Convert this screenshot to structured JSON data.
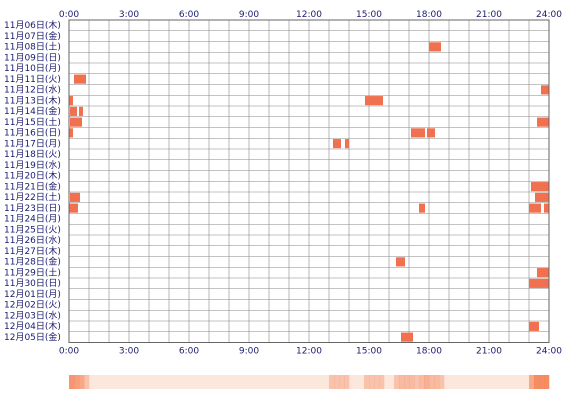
{
  "chart_data": {
    "type": "heatmap",
    "title": "",
    "xlabel": "",
    "ylabel": "",
    "xlim": [
      0,
      24
    ],
    "x_ticks": [
      "0:00",
      "3:00",
      "6:00",
      "9:00",
      "12:00",
      "15:00",
      "18:00",
      "21:00",
      "24:00"
    ],
    "grid": true,
    "rows": [
      {
        "label": "11月06日(木)",
        "spans": []
      },
      {
        "label": "11月07日(金)",
        "spans": []
      },
      {
        "label": "11月08日(土)",
        "spans": [
          [
            18.0,
            18.6
          ]
        ]
      },
      {
        "label": "11月09日(日)",
        "spans": []
      },
      {
        "label": "11月10日(月)",
        "spans": []
      },
      {
        "label": "11月11日(火)",
        "spans": [
          [
            0.25,
            0.85
          ]
        ]
      },
      {
        "label": "11月12日(水)",
        "spans": [
          [
            23.6,
            24.0
          ]
        ]
      },
      {
        "label": "11月13日(木)",
        "spans": [
          [
            0.0,
            0.2
          ],
          [
            14.8,
            15.7
          ]
        ]
      },
      {
        "label": "11月14日(金)",
        "spans": [
          [
            0.05,
            0.4
          ],
          [
            0.5,
            0.7
          ]
        ]
      },
      {
        "label": "11月15日(土)",
        "spans": [
          [
            0.05,
            0.65
          ],
          [
            23.4,
            24.0
          ]
        ]
      },
      {
        "label": "11月16日(日)",
        "spans": [
          [
            0.0,
            0.2
          ],
          [
            17.1,
            17.8
          ],
          [
            17.9,
            18.3
          ]
        ]
      },
      {
        "label": "11月17日(月)",
        "spans": [
          [
            13.2,
            13.6
          ],
          [
            13.8,
            14.0
          ]
        ]
      },
      {
        "label": "11月18日(火)",
        "spans": []
      },
      {
        "label": "11月19日(水)",
        "spans": []
      },
      {
        "label": "11月20日(木)",
        "spans": []
      },
      {
        "label": "11月21日(金)",
        "spans": [
          [
            23.1,
            24.0
          ]
        ]
      },
      {
        "label": "11月22日(土)",
        "spans": [
          [
            0.05,
            0.55
          ],
          [
            23.3,
            24.0
          ]
        ]
      },
      {
        "label": "11月23日(日)",
        "spans": [
          [
            0.0,
            0.45
          ],
          [
            17.5,
            17.8
          ],
          [
            23.0,
            23.6
          ],
          [
            23.75,
            24.0
          ]
        ]
      },
      {
        "label": "11月24日(月)",
        "spans": []
      },
      {
        "label": "11月25日(火)",
        "spans": []
      },
      {
        "label": "11月26日(水)",
        "spans": []
      },
      {
        "label": "11月27日(木)",
        "spans": []
      },
      {
        "label": "11月28日(金)",
        "spans": [
          [
            16.35,
            16.8
          ]
        ]
      },
      {
        "label": "11月29日(土)",
        "spans": [
          [
            23.4,
            24.0
          ]
        ]
      },
      {
        "label": "11月30日(日)",
        "spans": [
          [
            23.0,
            24.0
          ]
        ]
      },
      {
        "label": "12月01日(月)",
        "spans": []
      },
      {
        "label": "12月02日(火)",
        "spans": []
      },
      {
        "label": "12月03日(水)",
        "spans": []
      },
      {
        "label": "12月04日(木)",
        "spans": [
          [
            23.0,
            23.5
          ]
        ]
      },
      {
        "label": "12月05日(金)",
        "spans": [
          [
            16.6,
            17.2
          ]
        ]
      }
    ],
    "colors": {
      "cell_fill": "#f07050",
      "grid_line": "#888888",
      "frame": "#666666",
      "label_text": "#1a1a6e",
      "summary_base": "#fbe7dc",
      "summary_peak": "#f47c4c"
    }
  }
}
